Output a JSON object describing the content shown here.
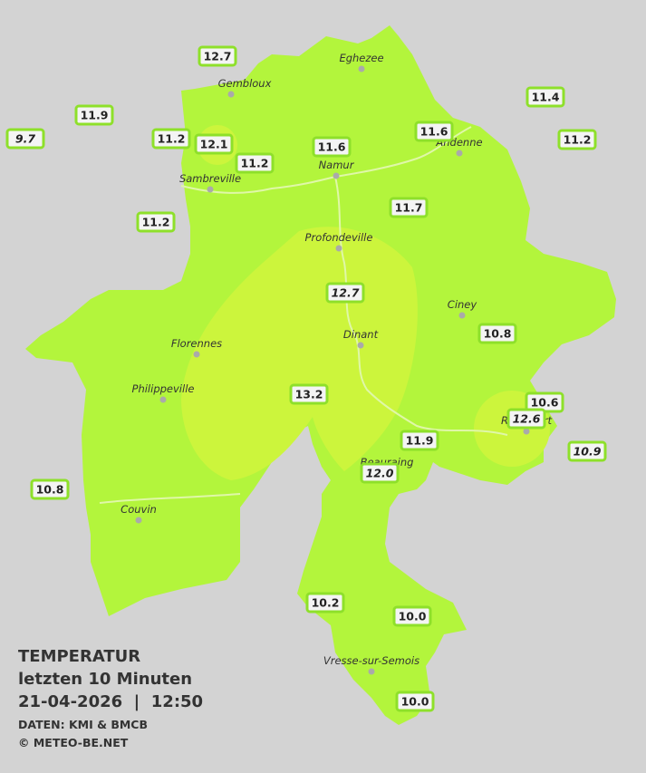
{
  "map": {
    "title": [
      "TEMPERATUR",
      "letzten 10 Minuten",
      "21-04-2026  |  12:50"
    ],
    "credits": [
      "DATEN: KMI & BMCB",
      "© METEO-BE.NET"
    ],
    "cities": [
      "Eghezee",
      "Gembloux",
      "Andenne",
      "Namur",
      "Sambreville",
      "Profondeville",
      "Ciney",
      "Dinant",
      "Florennes",
      "Philippeville",
      "Rochefort",
      "Beauraing",
      "Couvin",
      "Vresse-sur-Semois"
    ],
    "stations": [
      "12.7",
      "11.9",
      "9.7",
      "11.2",
      "12.1",
      "11.2",
      "11.6",
      "11.6",
      "11.4",
      "11.2",
      "11.2",
      "11.7",
      "12.7",
      "10.8",
      "13.2",
      "10.6",
      "12.6",
      "11.9",
      "10.9",
      "12.0",
      "10.8",
      "10.2",
      "10.0",
      "10.0"
    ]
  }
}
